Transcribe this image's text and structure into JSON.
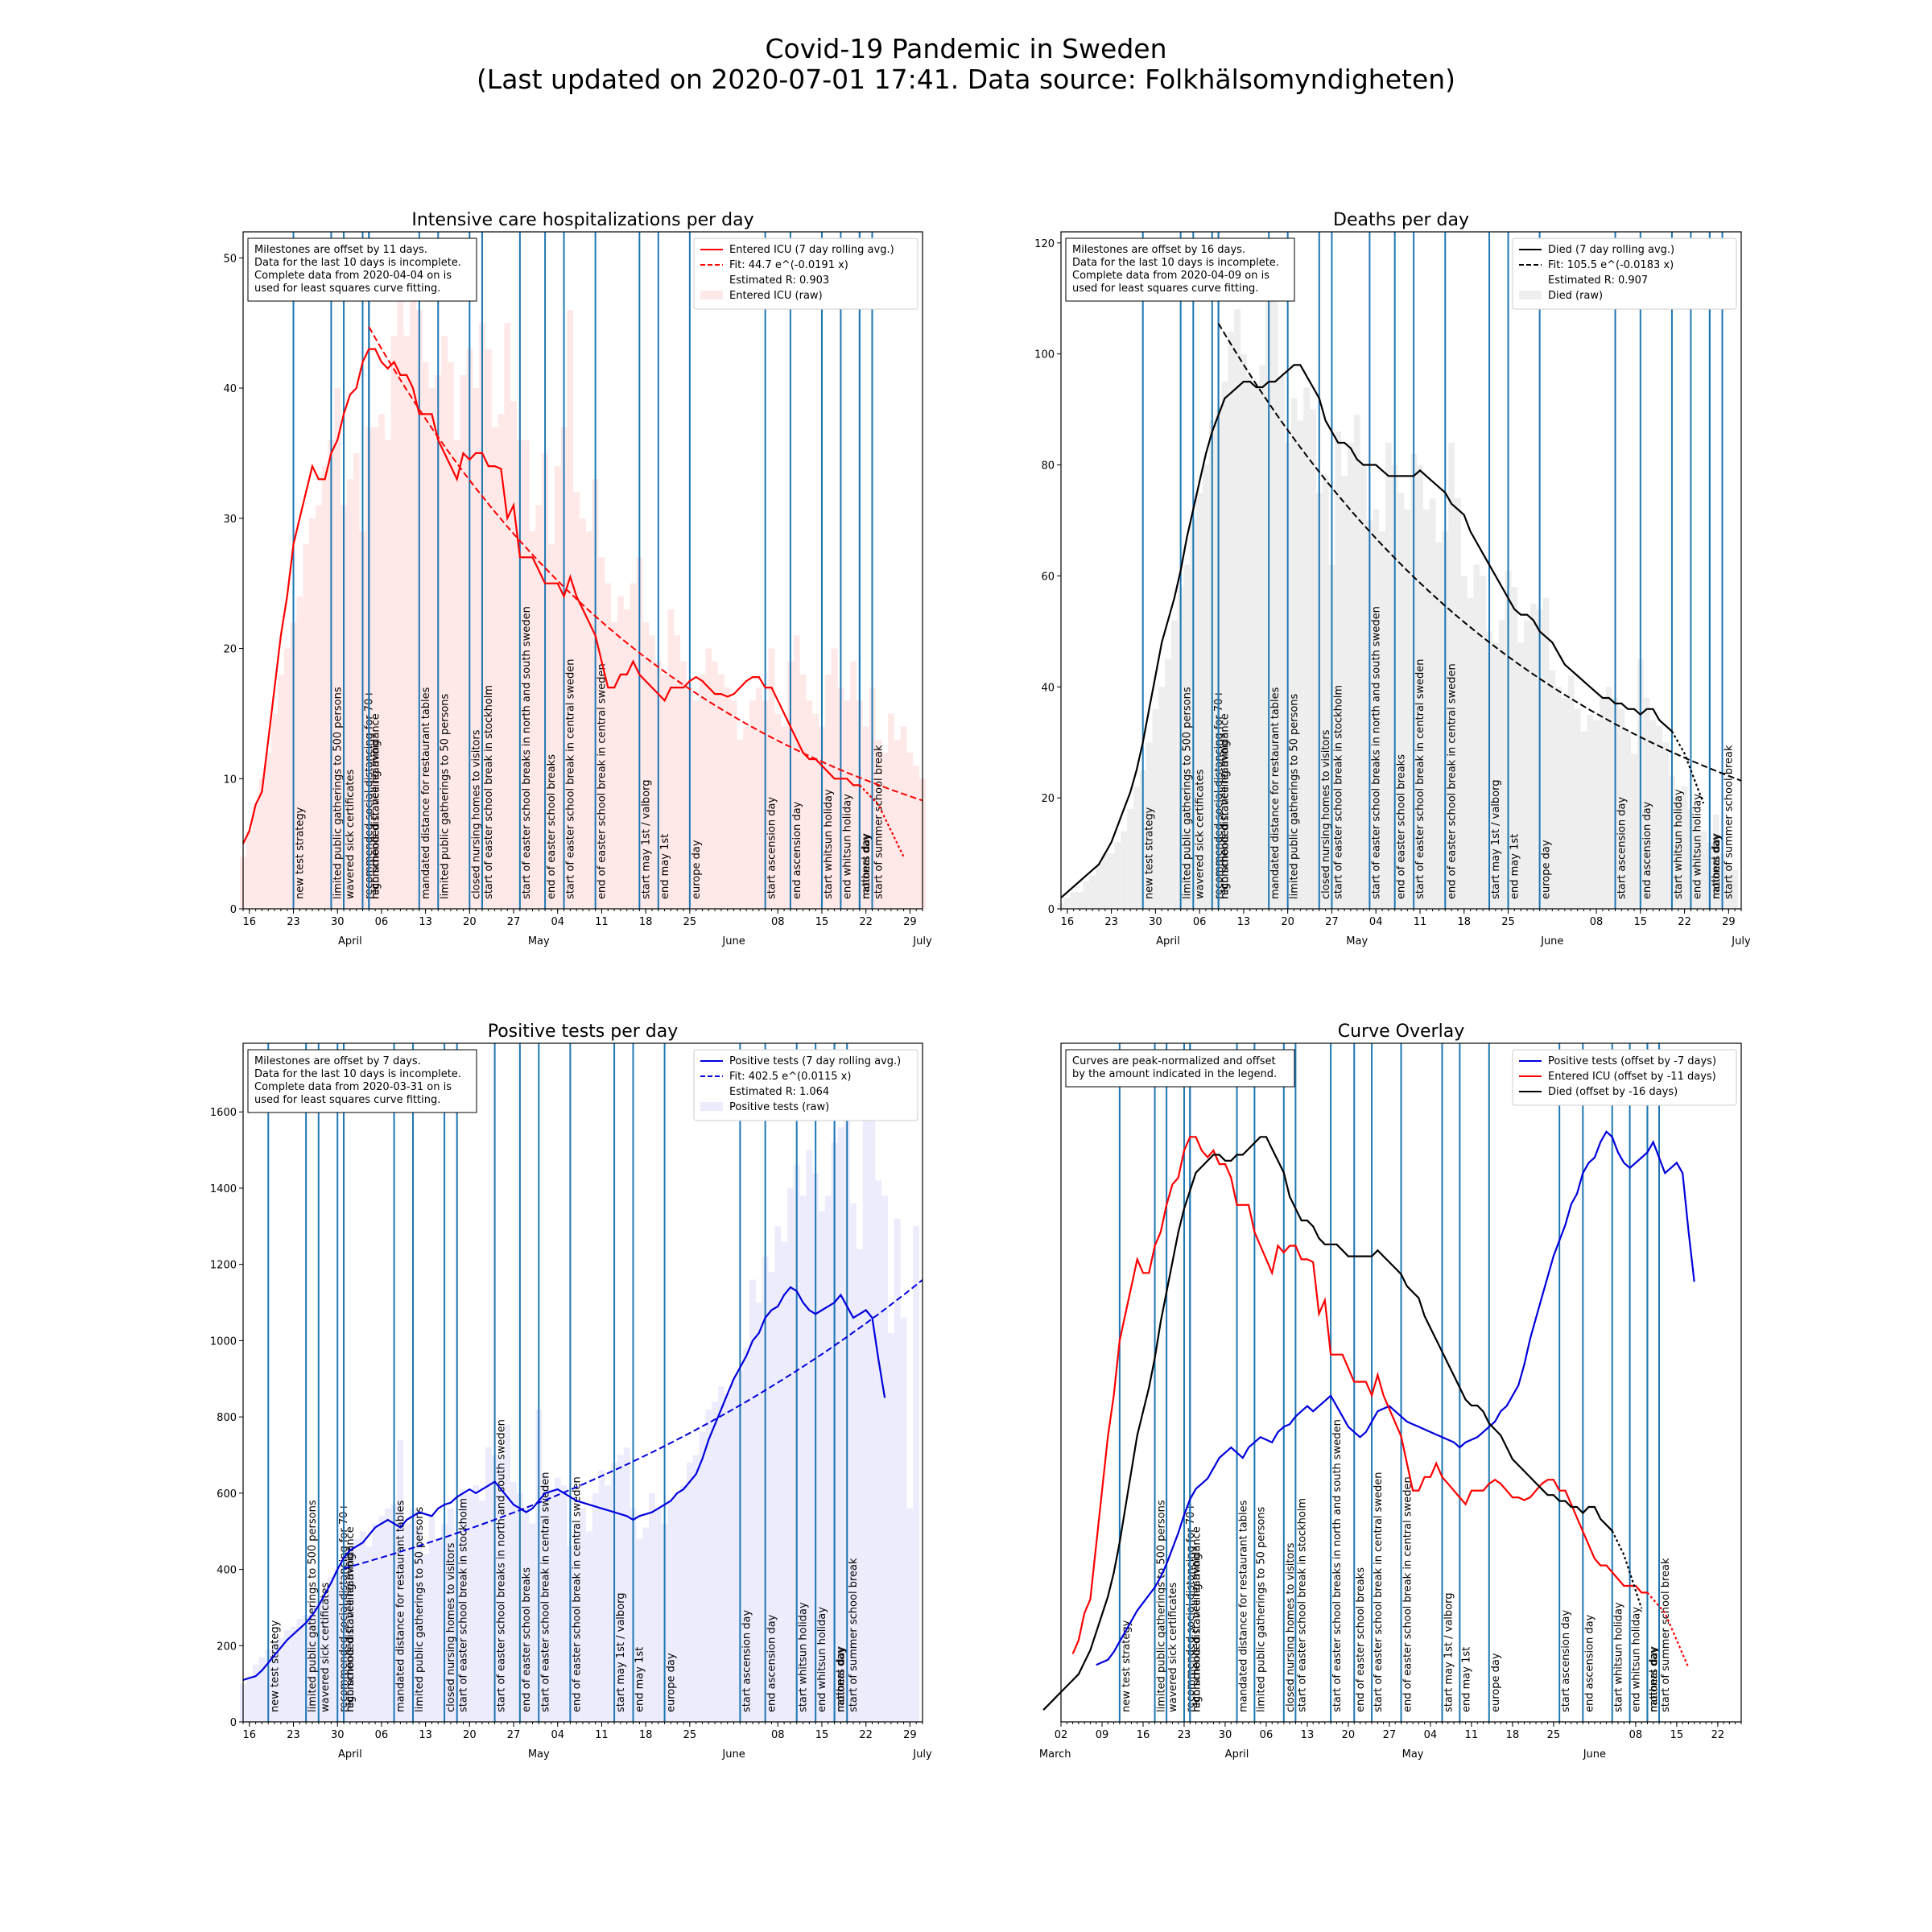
{
  "figure": {
    "title_line1": "Covid-19 Pandemic in Sweden",
    "title_line2": "(Last updated on 2020-07-01 17:41. Data source: Folkhälsomyndigheten)"
  },
  "colors": {
    "milestone_line": "#1f77b4",
    "icu": "#ff0000",
    "icu_raw": "#ffe8e8",
    "deaths": "#000000",
    "deaths_raw": "#eeeeee",
    "tests": "#0000dd",
    "tests_raw": "#ececfd"
  },
  "milestones": [
    {
      "date": "2020-03-12",
      "label": "new test strategy"
    },
    {
      "date": "2020-03-18",
      "label": "limited public gatherings to 500 persons"
    },
    {
      "date": "2020-03-20",
      "label": "wavered sick certificates"
    },
    {
      "date": "2020-03-23",
      "label": "recommended social distancing for 70+"
    },
    {
      "date": "2020-03-24",
      "label": "recommended travelling avoidance"
    },
    {
      "date": "2020-03-24",
      "label": "high schools distance learning"
    },
    {
      "date": "2020-04-01",
      "label": "mandated distance for restaurant tables"
    },
    {
      "date": "2020-04-04",
      "label": "limited public gatherings to 50 persons"
    },
    {
      "date": "2020-04-09",
      "label": "closed nursing homes to visitors"
    },
    {
      "date": "2020-04-11",
      "label": "start of easter school break in stockholm"
    },
    {
      "date": "2020-04-17",
      "label": "start of easter school breaks in north and south sweden"
    },
    {
      "date": "2020-04-21",
      "label": "end of easter school breaks"
    },
    {
      "date": "2020-04-24",
      "label": "start of easter school break in central sweden"
    },
    {
      "date": "2020-04-29",
      "label": "end of easter school break in central sweden"
    },
    {
      "date": "2020-05-06",
      "label": "start may 1st / valborg"
    },
    {
      "date": "2020-05-09",
      "label": "end may 1st"
    },
    {
      "date": "2020-05-14",
      "label": "europe day"
    },
    {
      "date": "2020-05-26",
      "label": "start ascension day"
    },
    {
      "date": "2020-05-30",
      "label": "end ascension day"
    },
    {
      "date": "2020-06-04",
      "label": "start whitsun holiday"
    },
    {
      "date": "2020-06-07",
      "label": "end whitsun holiday"
    },
    {
      "date": "2020-06-10",
      "label": "national day"
    },
    {
      "date": "2020-06-10",
      "label": "mothers day"
    },
    {
      "date": "2020-06-12",
      "label": "start of summer school break"
    }
  ],
  "panels": [
    {
      "title": "Intensive care hospitalizations per day",
      "infobox": [
        "Milestones are offset by 11 days.",
        "Data for the last 10 days is incomplete.",
        "Complete data from 2020-04-04 on is",
        "used for least squares curve fitting."
      ],
      "legend": [
        "Entered ICU (7 day rolling avg.)",
        "Fit:  44.7 e^(-0.0191 x)",
        "Estimated R: 0.903",
        "Entered ICU (raw)"
      ],
      "x_ticks": [
        "16",
        "23",
        "30",
        "06",
        "13",
        "20",
        "27",
        "04",
        "11",
        "18",
        "25",
        "08",
        "15",
        "22",
        "29"
      ],
      "month_labels": [
        "April",
        "May",
        "June",
        "July"
      ],
      "y_ticks": [
        "0",
        "10",
        "20",
        "30",
        "40",
        "50"
      ]
    },
    {
      "title": "Deaths per day",
      "infobox": [
        "Milestones are offset by 16 days.",
        "Data for the last 10 days is incomplete.",
        "Complete data from 2020-04-09 on is",
        "used for least squares curve fitting."
      ],
      "legend": [
        "Died (7 day rolling avg.)",
        "Fit: 105.5 e^(-0.0183 x)",
        "Estimated R: 0.907",
        "Died (raw)"
      ],
      "x_ticks": [
        "16",
        "23",
        "30",
        "06",
        "13",
        "20",
        "27",
        "04",
        "11",
        "18",
        "25",
        "08",
        "15",
        "22",
        "29"
      ],
      "month_labels": [
        "April",
        "May",
        "June",
        "July"
      ],
      "y_ticks": [
        "0",
        "20",
        "40",
        "60",
        "80",
        "100",
        "120"
      ]
    },
    {
      "title": "Positive tests per day",
      "infobox": [
        "Milestones are offset by 7 days.",
        "Data for the last 10 days is incomplete.",
        "Complete data from 2020-03-31 on is",
        "used for least squares curve fitting."
      ],
      "legend": [
        "Positive tests (7 day rolling avg.)",
        "Fit: 402.5 e^(0.0115 x)",
        "Estimated R: 1.064",
        "Positive tests (raw)"
      ],
      "x_ticks": [
        "16",
        "23",
        "30",
        "06",
        "13",
        "20",
        "27",
        "04",
        "11",
        "18",
        "25",
        "08",
        "15",
        "22",
        "29"
      ],
      "month_labels": [
        "April",
        "May",
        "June",
        "July"
      ],
      "y_ticks": [
        "0",
        "200",
        "400",
        "600",
        "800",
        "1000",
        "1200",
        "1400",
        "1600"
      ]
    },
    {
      "title": "Curve Overlay",
      "infobox": [
        "Curves are peak-normalized and offset",
        "by the amount indicated in the legend."
      ],
      "legend": [
        "Positive tests (offset by -7 days)",
        "Entered ICU (offset by -11 days)",
        "Died (offset by -16 days)"
      ],
      "x_ticks": [
        "02",
        "09",
        "16",
        "23",
        "30",
        "06",
        "13",
        "20",
        "27",
        "04",
        "11",
        "18",
        "25",
        "08",
        "15",
        "22"
      ],
      "month_labels": [
        "March",
        "April",
        "May",
        "June"
      ],
      "y_ticks": []
    }
  ],
  "chart_data": [
    {
      "type": "bar",
      "title": "Intensive care hospitalizations per day",
      "x_range": [
        "2020-03-15",
        "2020-07-01"
      ],
      "ylim": [
        0,
        52
      ],
      "grid": false,
      "legend_position": "upper right",
      "raw_start": "2020-03-15",
      "raw": [
        4,
        6,
        8,
        10,
        12,
        15,
        18,
        20,
        22,
        24,
        28,
        30,
        31,
        34,
        36,
        40,
        31,
        33,
        35,
        29,
        37,
        37,
        38,
        36,
        44,
        47,
        44,
        50,
        46,
        42,
        40,
        41,
        44,
        42,
        36,
        41,
        43,
        40,
        45,
        43,
        37,
        38,
        45,
        39,
        36,
        36,
        29,
        31,
        35,
        28,
        34,
        37,
        46,
        32,
        30,
        29,
        33,
        27,
        25,
        22,
        24,
        23,
        25,
        27,
        22,
        21,
        19,
        18,
        23,
        21,
        19,
        17,
        16,
        18,
        20,
        19,
        18,
        17,
        16,
        13,
        14,
        16,
        17,
        16,
        20,
        15,
        14,
        19,
        21,
        18,
        16,
        15,
        14,
        18,
        20,
        17,
        16,
        19,
        16,
        14,
        17,
        13,
        12,
        15,
        13,
        14,
        12,
        11,
        10,
        11,
        8,
        9,
        6,
        5,
        6,
        3,
        2,
        3
      ],
      "series": [
        {
          "name": "Entered ICU (7 day rolling avg.)",
          "start": "2020-03-15",
          "values": [
            5,
            6,
            8,
            9,
            13,
            17,
            21,
            24,
            28,
            30,
            32,
            34,
            33,
            33,
            35,
            36,
            38,
            39.5,
            40,
            42,
            43,
            43,
            42,
            41.5,
            42,
            41,
            41,
            40,
            38,
            38,
            38,
            36,
            35,
            34,
            33,
            35,
            34.5,
            35,
            35,
            34,
            34,
            33.8,
            30,
            31,
            27,
            27,
            27,
            26,
            25,
            25,
            25,
            24,
            25.5,
            24,
            23,
            22,
            21,
            19,
            17,
            17,
            18,
            18,
            19,
            18,
            17.5,
            17,
            16.5,
            16,
            17,
            17,
            17,
            17.5,
            17.8,
            17.5,
            17,
            16.5,
            16.5,
            16.3,
            16.5,
            17,
            17.5,
            17.8,
            17.8,
            17,
            17,
            16,
            15,
            14,
            13,
            12,
            11.5,
            11.5,
            11,
            10.5,
            10,
            10,
            10,
            9.5,
            9.5,
            9,
            8.5,
            8,
            7,
            6,
            5,
            4
          ],
          "solid_until": "2020-06-21"
        },
        {
          "name": "Fit:  44.7 e^(-0.0191 x)",
          "fit": {
            "a": 44.7,
            "b": -0.0191,
            "from": "2020-04-04",
            "to": "2020-07-01"
          }
        }
      ],
      "xlabel": "",
      "ylabel": ""
    },
    {
      "type": "bar",
      "title": "Deaths per day",
      "x_range": [
        "2020-03-15",
        "2020-07-01"
      ],
      "ylim": [
        0,
        122
      ],
      "grid": false,
      "legend_position": "upper right",
      "raw_start": "2020-03-15",
      "raw": [
        1,
        2,
        3,
        3,
        5,
        6,
        8,
        10,
        10,
        12,
        14,
        18,
        22,
        25,
        30,
        36,
        40,
        45,
        52,
        58,
        62,
        70,
        75,
        80,
        88,
        90,
        95,
        104,
        108,
        100,
        96,
        94,
        98,
        110,
        115,
        96,
        84,
        92,
        88,
        94,
        90,
        75,
        78,
        62,
        86,
        78,
        84,
        89,
        80,
        70,
        72,
        68,
        84,
        80,
        75,
        72,
        82,
        80,
        72,
        74,
        66,
        68,
        84,
        74,
        60,
        56,
        62,
        60,
        50,
        48,
        52,
        61,
        58,
        48,
        52,
        55,
        54,
        56,
        43,
        40,
        38,
        42,
        36,
        32,
        35,
        34,
        38,
        40,
        38,
        36,
        32,
        28,
        45,
        38,
        34,
        33,
        30,
        24,
        20,
        22,
        18,
        16,
        14,
        12,
        17,
        10,
        8,
        7
      ],
      "series": [
        {
          "name": "Died (7 day rolling avg.)",
          "start": "2020-03-15",
          "values": [
            2,
            3,
            4,
            5,
            6,
            7,
            8,
            10,
            12,
            15,
            18,
            21,
            25,
            30,
            36,
            42,
            48,
            52,
            56,
            61,
            67,
            72,
            77,
            82,
            86,
            89,
            92,
            93,
            94,
            95,
            95,
            94,
            94,
            95,
            95,
            96,
            97,
            98,
            98,
            96,
            94,
            92,
            88,
            86,
            84,
            84,
            83,
            81,
            80,
            80,
            80,
            79,
            78,
            78,
            78,
            78,
            78,
            79,
            78,
            77,
            76,
            75,
            73,
            72,
            71,
            68,
            66,
            64,
            62,
            60,
            58,
            56,
            54,
            53,
            53,
            52,
            50,
            49,
            48,
            46,
            44,
            43,
            42,
            41,
            40,
            39,
            38,
            38,
            37,
            37,
            36,
            36,
            35,
            36,
            36,
            34,
            33,
            32,
            30,
            28,
            25,
            22,
            19
          ],
          "solid_until": "2020-06-20"
        },
        {
          "name": "Fit: 105.5 e^(-0.0183 x)",
          "fit": {
            "a": 105.5,
            "b": -0.0183,
            "from": "2020-04-09",
            "to": "2020-07-01"
          }
        }
      ],
      "xlabel": "",
      "ylabel": ""
    },
    {
      "type": "bar",
      "title": "Positive tests per day",
      "x_range": [
        "2020-03-15",
        "2020-07-01"
      ],
      "ylim": [
        0,
        1780
      ],
      "grid": false,
      "legend_position": "upper right",
      "raw_start": "2020-03-15",
      "raw": [
        100,
        120,
        150,
        170,
        190,
        210,
        220,
        240,
        250,
        270,
        280,
        300,
        320,
        330,
        380,
        400,
        420,
        460,
        480,
        500,
        460,
        520,
        540,
        560,
        570,
        740,
        520,
        560,
        510,
        440,
        540,
        480,
        520,
        560,
        480,
        610,
        600,
        620,
        580,
        720,
        700,
        690,
        780,
        630,
        600,
        560,
        520,
        820,
        650,
        610,
        640,
        620,
        460,
        520,
        560,
        500,
        600,
        660,
        620,
        680,
        700,
        720,
        560,
        480,
        510,
        600,
        560,
        520,
        580,
        600,
        620,
        680,
        700,
        760,
        820,
        840,
        880,
        860,
        900,
        920,
        980,
        1160,
        1100,
        1220,
        1180,
        1300,
        1260,
        1400,
        1460,
        1380,
        1500,
        1440,
        1340,
        1380,
        1520,
        1560,
        1600,
        1360,
        1240,
        1680,
        1640,
        1420,
        1380,
        1020,
        1320,
        1060,
        560,
        1300
      ],
      "series": [
        {
          "name": "Positive tests (7 day rolling avg.)",
          "start": "2020-03-15",
          "values": [
            110,
            115,
            120,
            135,
            155,
            175,
            195,
            215,
            230,
            245,
            260,
            280,
            305,
            335,
            365,
            400,
            430,
            450,
            460,
            470,
            490,
            510,
            520,
            530,
            520,
            510,
            530,
            540,
            550,
            545,
            540,
            560,
            570,
            575,
            590,
            600,
            610,
            600,
            610,
            620,
            630,
            610,
            590,
            570,
            560,
            550,
            560,
            580,
            600,
            605,
            610,
            600,
            590,
            580,
            575,
            570,
            565,
            560,
            555,
            550,
            545,
            540,
            530,
            540,
            545,
            550,
            560,
            570,
            580,
            600,
            610,
            630,
            650,
            690,
            740,
            780,
            820,
            860,
            900,
            930,
            960,
            1000,
            1020,
            1060,
            1080,
            1090,
            1120,
            1140,
            1130,
            1100,
            1080,
            1070,
            1080,
            1090,
            1100,
            1120,
            1090,
            1060,
            1070,
            1080,
            1060,
            950,
            850
          ],
          "solid_until": "2020-06-25"
        },
        {
          "name": "Fit: 402.5 e^(0.0115 x)",
          "fit": {
            "a": 402.5,
            "b": 0.0115,
            "from": "2020-03-31",
            "to": "2020-07-01"
          }
        }
      ],
      "xlabel": "",
      "ylabel": ""
    },
    {
      "type": "line",
      "title": "Curve Overlay",
      "x_range": [
        "2020-03-02",
        "2020-06-26"
      ],
      "ylim": [
        0,
        1.16
      ],
      "y_axis_labels": false,
      "grid": false,
      "legend_position": "upper right",
      "series": [
        {
          "name": "Positive tests (offset by -7 days)",
          "offset_days": -7,
          "scale": 1130,
          "source": "tests"
        },
        {
          "name": "Entered ICU (offset by -11 days)",
          "offset_days": -11,
          "scale": 43,
          "source": "icu"
        },
        {
          "name": "Died (offset by -16 days)",
          "offset_days": -16,
          "scale": 98,
          "source": "deaths"
        }
      ],
      "xlabel": "",
      "ylabel": ""
    }
  ]
}
